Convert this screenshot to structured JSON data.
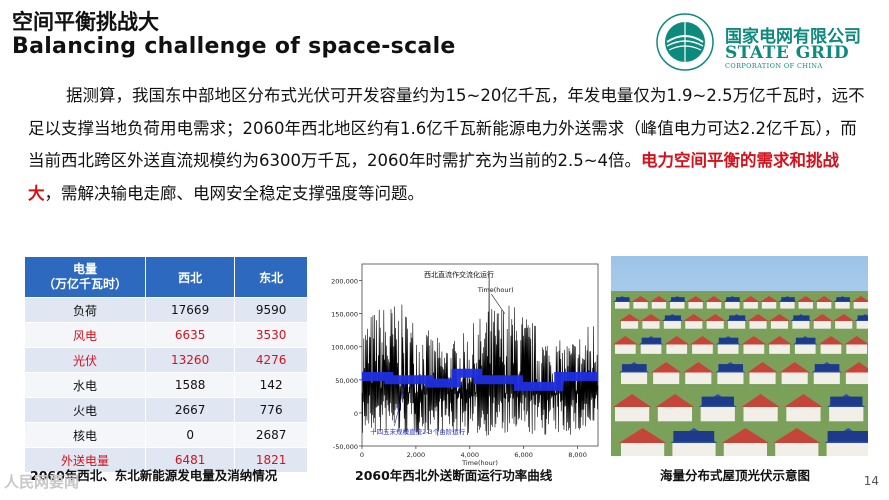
{
  "header": {
    "title_zh": "空间平衡挑战大",
    "title_en": "Balancing challenge of space-scale"
  },
  "logo": {
    "name_zh": "国家电网有限公司",
    "name_en": "STATE GRID",
    "sub_en": "CORPORATION OF CHINA",
    "color": "#0d8a7c"
  },
  "body": {
    "text_before": "据测算，我国东中部地区分布式光伏可开发容量约为15~20亿千瓦，年发电量仅为1.9~2.5万亿千瓦时，远不足以支撑当地负荷用电需求；2060年西北地区约有1.6亿千瓦新能源电力外送需求（峰值电力可达2.2亿千瓦），而当前西北跨区外送直流规模约为6300万千瓦，2060年时需扩充为当前的2.5~4倍。",
    "highlight": "电力空间平衡的需求和挑战大",
    "text_after": "，需解决输电走廊、电网安全稳定支撑强度等问题。",
    "highlight_color": "#d4121c"
  },
  "table": {
    "header": [
      "电量\n（万亿千瓦时）",
      "西北",
      "东北"
    ],
    "rows": [
      {
        "label": "负荷",
        "nw": "17669",
        "ne": "9590",
        "red": false
      },
      {
        "label": "风电",
        "nw": "6635",
        "ne": "3530",
        "red": true
      },
      {
        "label": "光伏",
        "nw": "13260",
        "ne": "4276",
        "red": true
      },
      {
        "label": "水电",
        "nw": "1588",
        "ne": "142",
        "red": false
      },
      {
        "label": "火电",
        "nw": "2667",
        "ne": "776",
        "red": false
      },
      {
        "label": "核电",
        "nw": "0",
        "ne": "2687",
        "red": false
      },
      {
        "label": "外送电量",
        "nw": "6481",
        "ne": "1821",
        "red": true
      }
    ],
    "header_color": "#2d6abf",
    "caption": "2060年西北、东北新能源发电量及消纳情况"
  },
  "chart_data": {
    "type": "line",
    "title": "",
    "annotations": [
      "西北直流作交流化运行",
      "Time(hour)",
      "十四五末规模直流2-3个台阶运行"
    ],
    "xlabel": "Time(hour)",
    "xlim": [
      0,
      8760
    ],
    "x_ticks": [
      "0",
      "2,000",
      "4,000",
      "6,000",
      "8,000"
    ],
    "ylim": [
      -50000,
      225000
    ],
    "y_ticks": [
      "-50,000",
      "0",
      "50,000",
      "100,000",
      "150,000",
      "200,000"
    ],
    "series": [
      {
        "name": "西北直流作交流化运行",
        "color": "#000000",
        "peak_max": 215000,
        "floor_min": -40000
      },
      {
        "name": "十四五末规模直流2-3个台阶运行",
        "color": "#1f2fe0",
        "steps": [
          {
            "x0": 0,
            "x1": 1000,
            "y": 55000
          },
          {
            "x0": 1000,
            "x1": 2500,
            "y": 50000
          },
          {
            "x0": 2500,
            "x1": 3500,
            "y": 45000
          },
          {
            "x0": 3500,
            "x1": 4300,
            "y": 60000
          },
          {
            "x0": 4300,
            "x1": 5800,
            "y": 50000
          },
          {
            "x0": 5800,
            "x1": 7300,
            "y": 40000
          },
          {
            "x0": 7300,
            "x1": 8760,
            "y": 55000
          }
        ]
      }
    ],
    "caption": "2060年西北外送断面运行功率曲线"
  },
  "photo": {
    "caption": "海量分布式屋顶光伏示意图"
  },
  "footer": {
    "page": "14",
    "watermark": "人民网要闻"
  }
}
